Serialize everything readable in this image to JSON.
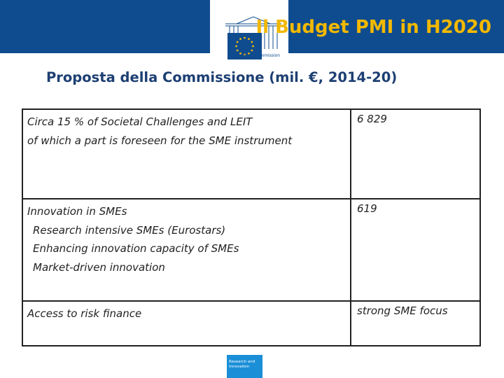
{
  "header": {
    "title": "Il Budget PMI in H2020",
    "logo_text": "European Commission"
  },
  "subtitle": "Proposta della Commissione (mil. €, 2014-20)",
  "table": {
    "rows": [
      {
        "lines": [
          "Circa 15 % of Societal Challenges and LEIT",
          "of which a part is foreseen for the SME instrument"
        ],
        "value": "6 829"
      },
      {
        "lines": [
          "Innovation in SMEs",
          "Research intensive SMEs (Eurostars)",
          "Enhancing innovation capacity of SMEs",
          "Market-driven innovation"
        ],
        "value": "619"
      },
      {
        "lines": [
          "Access to risk finance"
        ],
        "value": "strong SME focus"
      }
    ]
  },
  "footer": {
    "badge_text": "Research and Innovation"
  },
  "colors": {
    "band": "#0f4c8f",
    "title": "#f2b800",
    "subtitle": "#1d3f73",
    "badge": "#1a8fd8"
  }
}
